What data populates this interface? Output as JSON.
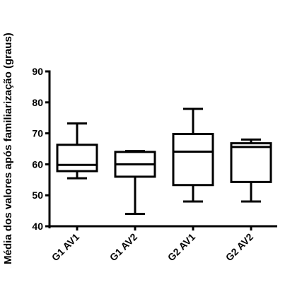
{
  "chart_data": {
    "type": "boxplot",
    "title": "",
    "xlabel": "",
    "ylabel": "Média dos valores após familiarização (graus)",
    "ylim": [
      40,
      90
    ],
    "yticks": [
      40,
      50,
      60,
      70,
      80,
      90
    ],
    "grid": false,
    "legend": "none",
    "categories": [
      "G1 AV1",
      "G1 AV2",
      "G2 AV1",
      "G2 AV2"
    ],
    "boxes": [
      {
        "category": "G1 AV1",
        "min": 55.5,
        "q1": 57.8,
        "median": 59.8,
        "q3": 66.3,
        "max": 73.2
      },
      {
        "category": "G1 AV2",
        "min": 44.0,
        "q1": 56.0,
        "median": 60.0,
        "q3": 64.0,
        "max": 64.3
      },
      {
        "category": "G2 AV1",
        "min": 48.0,
        "q1": 53.3,
        "median": 64.1,
        "q3": 69.8,
        "max": 77.9
      },
      {
        "category": "G2 AV2",
        "min": 48.0,
        "q1": 54.3,
        "median": 65.6,
        "q3": 66.8,
        "max": 68.0
      }
    ],
    "colors": {
      "stroke": "#000000",
      "fill": "#ffffff"
    }
  }
}
